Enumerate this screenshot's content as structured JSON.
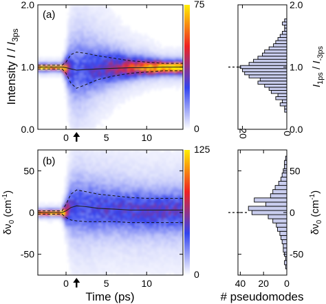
{
  "figure": {
    "x_axis_label": "Time (ps)",
    "histogram_x_label": "# pseudomodes"
  },
  "chart_data": [
    {
      "id": "a",
      "type": "heatmap",
      "panel_label": "(a)",
      "ylabel": "Intensity I / I_3ps",
      "xlim": [
        -3.5,
        14.5
      ],
      "ylim": [
        0,
        2
      ],
      "xticks": [
        0,
        5,
        10
      ],
      "yticks": [
        0.0,
        1.0,
        2.0
      ],
      "ytick_labels": [
        "0.0",
        "1.0",
        "2.0"
      ],
      "colorbar": {
        "min": 0,
        "max": 75,
        "tick_labels": [
          "0",
          "75"
        ],
        "colors": [
          "#ffffff",
          "#3344ee",
          "#ee2222",
          "#ffee00"
        ]
      },
      "arrow_marker_x": 1.3,
      "mean_line": {
        "x": [
          -3.5,
          -0.5,
          0,
          0.6,
          1.3,
          2.5,
          4,
          6,
          8,
          10,
          12,
          14.5
        ],
        "y": [
          1.0,
          1.0,
          0.99,
          0.97,
          0.95,
          0.96,
          0.97,
          0.98,
          0.99,
          0.99,
          1.0,
          1.0
        ]
      },
      "upper_dashed": {
        "x": [
          -3.5,
          -0.5,
          0,
          0.6,
          1.3,
          2.5,
          4,
          6,
          8,
          10,
          12,
          14.5
        ],
        "y": [
          1.03,
          1.03,
          1.08,
          1.2,
          1.24,
          1.22,
          1.18,
          1.14,
          1.1,
          1.08,
          1.06,
          1.06
        ]
      },
      "lower_dashed": {
        "x": [
          -3.5,
          -0.5,
          0,
          0.6,
          1.3,
          2.5,
          4,
          6,
          8,
          10,
          12,
          14.5
        ],
        "y": [
          0.97,
          0.97,
          0.9,
          0.74,
          0.66,
          0.72,
          0.8,
          0.86,
          0.9,
          0.92,
          0.94,
          0.94
        ]
      },
      "histogram": {
        "xlabel": "# pseudomodes",
        "ylabel": "I_1ps / I_-3ps",
        "xlim": [
          22,
          0
        ],
        "xticks": [
          20,
          0
        ],
        "ylim": [
          0,
          2
        ],
        "yticks": [
          0.0,
          1.0,
          2.0
        ],
        "ytick_labels": [
          "0.0",
          "1.0",
          "2.0"
        ],
        "reference_value": 1.0,
        "bins": [
          0.3,
          0.35,
          0.4,
          0.45,
          0.5,
          0.55,
          0.6,
          0.65,
          0.7,
          0.75,
          0.8,
          0.85,
          0.9,
          0.95,
          1.0,
          1.05,
          1.1,
          1.15,
          1.2,
          1.25,
          1.3,
          1.35,
          1.4,
          1.45,
          1.5,
          1.55,
          1.6,
          1.65,
          1.7,
          1.75
        ],
        "counts": [
          1,
          1,
          3,
          2,
          5,
          4,
          7,
          8,
          10,
          13,
          12,
          17,
          19,
          20,
          21,
          17,
          15,
          13,
          11,
          10,
          8,
          6,
          5,
          4,
          3,
          2,
          1,
          1,
          2,
          1
        ]
      }
    },
    {
      "id": "b",
      "type": "heatmap",
      "panel_label": "(b)",
      "ylabel": "δν0 (cm-1)",
      "xlim": [
        -3.5,
        14.5
      ],
      "ylim": [
        -75,
        75
      ],
      "xticks": [
        0,
        5,
        10
      ],
      "yticks": [
        -50,
        0,
        50
      ],
      "ytick_labels": [
        "-50",
        "0",
        "50"
      ],
      "colorbar": {
        "min": 0,
        "max": 125,
        "tick_labels": [
          "0",
          "125"
        ],
        "colors": [
          "#ffffff",
          "#3344ee",
          "#ee2222",
          "#ffee00"
        ]
      },
      "arrow_marker_x": 1.3,
      "mean_line": {
        "x": [
          -3.5,
          -0.5,
          0,
          0.6,
          1.3,
          2.5,
          4,
          6,
          8,
          10,
          12,
          14.5
        ],
        "y": [
          0,
          0,
          2,
          6,
          8,
          7,
          5,
          4,
          3,
          3,
          3,
          3
        ]
      },
      "upper_dashed": {
        "x": [
          -3.5,
          -0.5,
          0,
          0.6,
          1.3,
          2.5,
          4,
          6,
          8,
          10,
          12,
          14.5
        ],
        "y": [
          2,
          2,
          10,
          22,
          27,
          25,
          22,
          20,
          18,
          17,
          17,
          17
        ]
      },
      "lower_dashed": {
        "x": [
          -3.5,
          -0.5,
          0,
          0.6,
          1.3,
          2.5,
          4,
          6,
          8,
          10,
          12,
          14.5
        ],
        "y": [
          -2,
          -2,
          -6,
          -9,
          -10,
          -11,
          -11,
          -11,
          -12,
          -12,
          -12,
          -12
        ]
      },
      "histogram": {
        "xlabel": "# pseudomodes",
        "ylabel": "δν0 (cm-1)",
        "xlim": [
          42,
          0
        ],
        "xticks": [
          40,
          20,
          0
        ],
        "ylim": [
          -75,
          75
        ],
        "yticks": [
          -50,
          0,
          50
        ],
        "ytick_labels": [
          "-50",
          "0",
          "50"
        ],
        "reference_value": 0,
        "bins": [
          -65,
          -60,
          -55,
          -50,
          -45,
          -40,
          -35,
          -30,
          -25,
          -20,
          -15,
          -10,
          -5,
          0,
          5,
          10,
          15,
          20,
          25,
          30,
          35,
          40,
          45,
          50,
          55,
          60,
          65
        ],
        "counts": [
          1,
          2,
          1,
          2,
          3,
          3,
          4,
          5,
          6,
          8,
          9,
          12,
          16,
          30,
          33,
          18,
          28,
          14,
          12,
          10,
          7,
          5,
          4,
          3,
          2,
          2,
          1
        ]
      }
    }
  ]
}
